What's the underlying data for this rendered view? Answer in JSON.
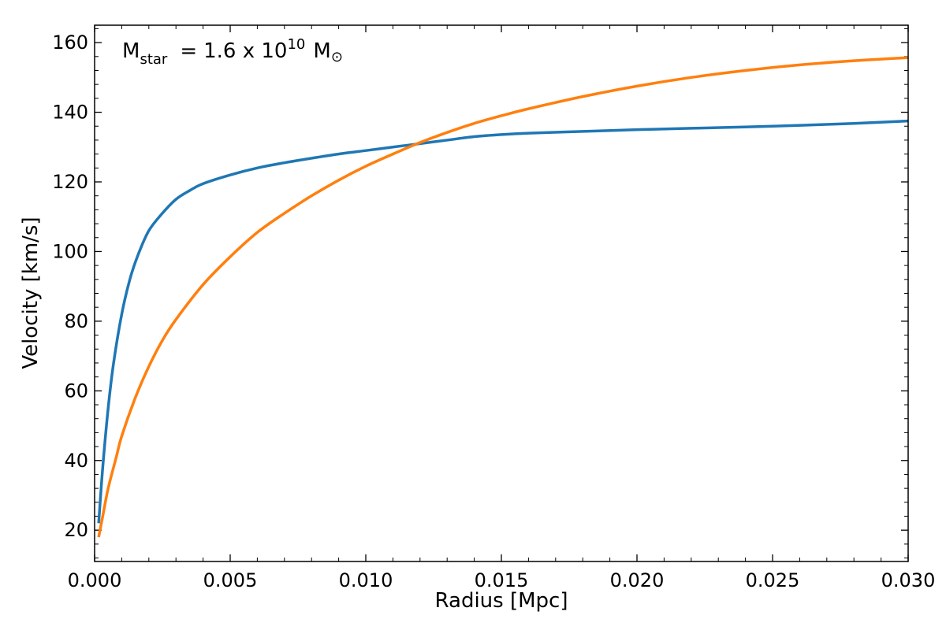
{
  "chart_data": {
    "type": "line",
    "xlabel": "Radius [Mpc]",
    "ylabel": "Velocity [km/s]",
    "xlim": [
      0.0,
      0.03
    ],
    "ylim": [
      11,
      165
    ],
    "xticks": [
      "0.000",
      "0.005",
      "0.010",
      "0.015",
      "0.020",
      "0.025",
      "0.030"
    ],
    "yticks": [
      "20",
      "40",
      "60",
      "80",
      "100",
      "120",
      "140",
      "160"
    ],
    "grid": false,
    "annotation": {
      "m": "M",
      "sub": "star",
      "eq": "=",
      "value": "1.6 x 10",
      "exp": "10",
      "unit": "M",
      "unit_sub": "⊙"
    },
    "series": [
      {
        "color": "#1f77b4",
        "x": [
          0.00015,
          0.0003,
          0.0005,
          0.0007,
          0.001,
          0.0013,
          0.0016,
          0.002,
          0.0025,
          0.003,
          0.0035,
          0.004,
          0.005,
          0.006,
          0.007,
          0.008,
          0.009,
          0.01,
          0.011,
          0.012,
          0.013,
          0.014,
          0.015,
          0.016,
          0.018,
          0.02,
          0.022,
          0.025,
          0.028,
          0.03
        ],
        "y": [
          22,
          38,
          55,
          68,
          82,
          92,
          99,
          106,
          111,
          115,
          117.5,
          119.5,
          122,
          124,
          125.5,
          126.8,
          128,
          129,
          130,
          131,
          132,
          133,
          133.6,
          134,
          134.5,
          135,
          135.4,
          136,
          136.8,
          137.5
        ]
      },
      {
        "color": "#ff7f0e",
        "x": [
          0.00015,
          0.0003,
          0.0005,
          0.0008,
          0.001,
          0.0015,
          0.002,
          0.0025,
          0.003,
          0.004,
          0.005,
          0.006,
          0.007,
          0.008,
          0.009,
          0.01,
          0.011,
          0.012,
          0.013,
          0.014,
          0.015,
          0.016,
          0.018,
          0.02,
          0.022,
          0.024,
          0.026,
          0.028,
          0.03
        ],
        "y": [
          18,
          24,
          32,
          41,
          47,
          58,
          67,
          74.5,
          80.5,
          90.5,
          98.5,
          105.5,
          111,
          116,
          120.5,
          124.5,
          128,
          131.3,
          134.2,
          136.8,
          139,
          141,
          144.5,
          147.5,
          150,
          152,
          153.6,
          154.8,
          155.7
        ]
      }
    ]
  }
}
